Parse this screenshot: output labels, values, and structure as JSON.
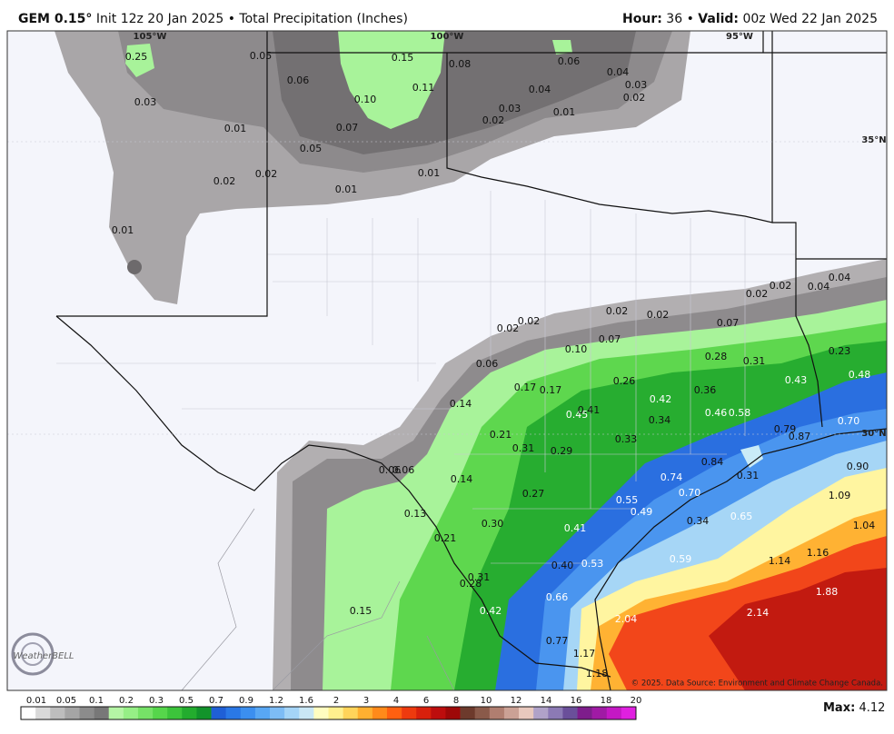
{
  "header": {
    "model": "GEM 0.15°",
    "init": "Init 12z 20 Jan 2025",
    "separator": "•",
    "product": "Total Precipitation (Inches)",
    "hour_label": "Hour:",
    "hour": "36",
    "separator2": "•",
    "valid_label": "Valid:",
    "valid": "00z Wed 22 Jan 2025"
  },
  "map": {
    "lon_labels": [
      "105°W",
      "100°W",
      "95°W"
    ],
    "lat_labels": [
      "35°N",
      "30°N"
    ],
    "values": [
      "0.25",
      "0.05",
      "0.15",
      "0.08",
      "0.06",
      "0.04",
      "0.03",
      "0.02",
      "0.04",
      "0.11",
      "0.06",
      "0.10",
      "0.03",
      "0.01",
      "0.07",
      "0.03",
      "0.02",
      "0.01",
      "0.05",
      "0.02",
      "0.02",
      "0.01",
      "0.01",
      "0.01",
      "0.04",
      "0.04",
      "0.02",
      "0.02",
      "0.02",
      "0.02",
      "0.02",
      "0.02",
      "0.07",
      "0.07",
      "0.10",
      "0.23",
      "0.28",
      "0.31",
      "0.06",
      "0.48",
      "0.43",
      "0.26",
      "0.17",
      "0.17",
      "0.42",
      "0.36",
      "0.14",
      "0.45",
      "0.41",
      "0.46",
      "0.58",
      "0.34",
      "0.70",
      "0.79",
      "0.87",
      "0.21",
      "0.33",
      "0.31",
      "0.29",
      "0.84",
      "0.06",
      "0.06",
      "0.74",
      "0.31",
      "0.90",
      "0.14",
      "0.27",
      "0.70",
      "0.55",
      "1.09",
      "0.49",
      "0.13",
      "0.34",
      "0.65",
      "0.30",
      "0.41",
      "1.04",
      "0.21",
      "1.16",
      "0.59",
      "1.14",
      "0.53",
      "0.40",
      "0.31",
      "0.28",
      "0.66",
      "1.88",
      "0.15",
      "0.42",
      "2.14",
      "2.04",
      "0.77",
      "1.17",
      "1.18"
    ],
    "credit": "© 2025. Data Source: Environment and Climate Change Canada.",
    "logo": "WeatherBELL"
  },
  "legend": {
    "labels": [
      "0.01",
      "0.05",
      "0.1",
      "0.2",
      "0.3",
      "0.5",
      "0.7",
      "0.9",
      "1.2",
      "1.6",
      "2",
      "3",
      "4",
      "6",
      "8",
      "10",
      "12",
      "14",
      "16",
      "18",
      "20"
    ],
    "max_label": "Max:",
    "max_value": "4.12"
  }
}
